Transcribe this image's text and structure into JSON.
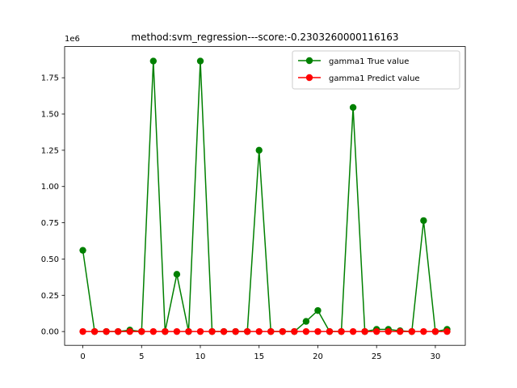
{
  "chart_data": {
    "type": "line",
    "title": "method:svm_regression---score:-0.2303260000116163",
    "xlabel": "",
    "ylabel": "",
    "y_scale_label": "1e6",
    "xlim": [
      -1.55,
      32.55
    ],
    "ylim": [
      -0.095,
      1.965
    ],
    "x_ticks": [
      0,
      5,
      10,
      15,
      20,
      25,
      30
    ],
    "x_tick_labels": [
      "0",
      "5",
      "10",
      "15",
      "20",
      "25",
      "30"
    ],
    "y_ticks": [
      0.0,
      0.25,
      0.5,
      0.75,
      1.0,
      1.25,
      1.5,
      1.75
    ],
    "y_tick_labels": [
      "0.00",
      "0.25",
      "0.50",
      "0.75",
      "1.00",
      "1.25",
      "1.50",
      "1.75"
    ],
    "grid": false,
    "legend_position": "upper right",
    "x": [
      0,
      1,
      2,
      3,
      4,
      5,
      6,
      7,
      8,
      9,
      10,
      11,
      12,
      13,
      14,
      15,
      16,
      17,
      18,
      19,
      20,
      21,
      22,
      23,
      24,
      25,
      26,
      27,
      28,
      29,
      30,
      31
    ],
    "series": [
      {
        "name": "gamma1 True value",
        "color": "#008000",
        "values": [
          0.56,
          0.0,
          0.0,
          0.0,
          0.01,
          0.0,
          1.865,
          0.0,
          0.395,
          0.0,
          1.865,
          0.0,
          0.0,
          0.0,
          0.0,
          1.25,
          0.0,
          0.0,
          0.0,
          0.07,
          0.145,
          0.0,
          0.0,
          1.545,
          0.0,
          0.015,
          0.015,
          0.005,
          0.0,
          0.765,
          0.0,
          0.015
        ]
      },
      {
        "name": "gamma1 Predict value",
        "color": "#ff0000",
        "values": [
          0,
          0,
          0,
          0,
          0,
          0,
          0,
          0,
          0,
          0,
          0,
          0,
          0,
          0,
          0,
          0,
          0,
          0,
          0,
          0,
          0,
          0,
          0,
          0,
          0,
          0,
          0,
          0,
          0,
          0,
          0,
          0
        ]
      }
    ]
  }
}
